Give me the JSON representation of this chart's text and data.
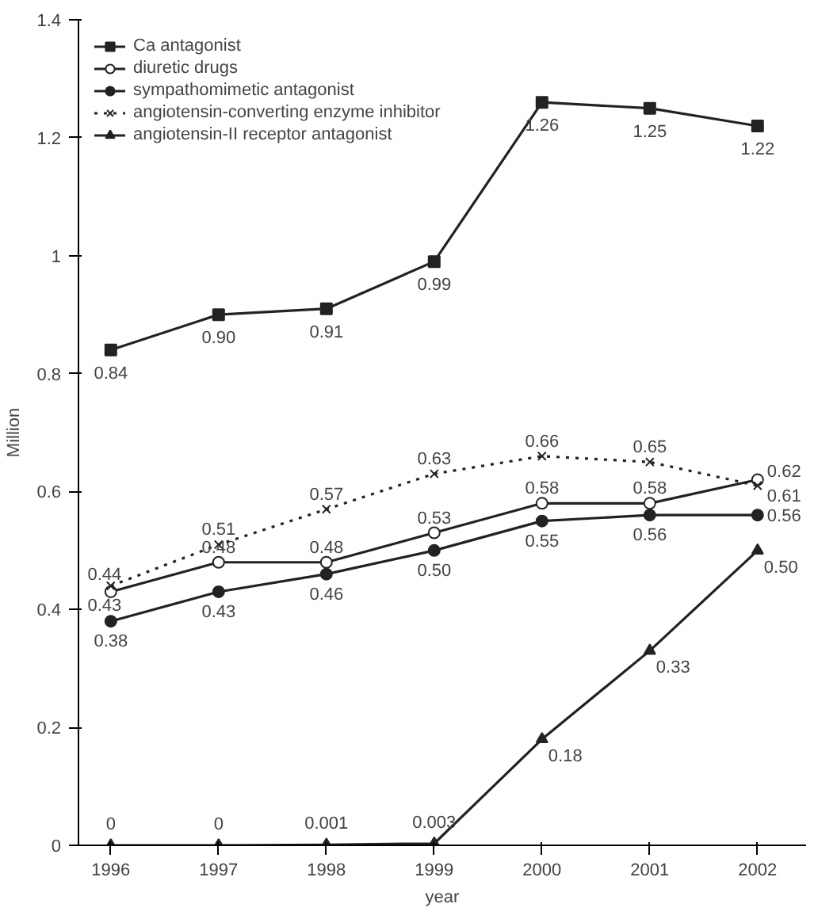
{
  "chart_data": {
    "type": "line",
    "xlabel": "year",
    "ylabel": "Million",
    "x": [
      1996,
      1997,
      1998,
      1999,
      2000,
      2001,
      2002
    ],
    "xlim": [
      1995.7,
      2002.45
    ],
    "xticks": [
      1996,
      1997,
      1998,
      1999,
      2000,
      2001,
      2002
    ],
    "ylim": [
      0,
      1.4
    ],
    "yticks": [
      0,
      0.2,
      0.4,
      0.6,
      0.8,
      1,
      1.2,
      1.4
    ],
    "grid": false,
    "legend": "top left",
    "series": [
      {
        "name": "Ca antagonist",
        "color": "#222222",
        "marker": "square",
        "line_style": "solid",
        "values": [
          0.84,
          0.9,
          0.91,
          0.99,
          1.26,
          1.25,
          1.22
        ],
        "value_labels": [
          "0.84",
          "0.90",
          "0.91",
          "0.99",
          "1.26",
          "1.25",
          "1.22"
        ]
      },
      {
        "name": "diuretic drugs",
        "color": "#222222",
        "marker": "circle",
        "line_style": "solid",
        "values": [
          0.43,
          0.48,
          0.48,
          0.53,
          0.58,
          0.58,
          0.62
        ],
        "value_labels": [
          "0.43",
          "0.48",
          "0.48",
          "0.53",
          "0.58",
          "0.58",
          "0.62"
        ]
      },
      {
        "name": "sympathomimetic antagonist",
        "color": "#222222",
        "marker": "circle",
        "line_style": "solid",
        "values": [
          0.38,
          0.43,
          0.46,
          0.5,
          0.55,
          0.56,
          0.56
        ],
        "value_labels": [
          "0.38",
          "0.43",
          "0.46",
          "0.50",
          "0.55",
          "0.56",
          "0.56"
        ]
      },
      {
        "name": "angiotensin-converting enzyme inhibitor",
        "color": "#222222",
        "marker": "cross",
        "line_style": "dotted",
        "values": [
          0.44,
          0.51,
          0.57,
          0.63,
          0.66,
          0.65,
          0.61
        ],
        "value_labels": [
          "0.44",
          "0.51",
          "0.57",
          "0.63",
          "0.66",
          "0.65",
          "0.61"
        ]
      },
      {
        "name": "angiotensin-II receptor antagonist",
        "color": "#222222",
        "marker": "triangle",
        "line_style": "solid",
        "values": [
          0,
          0,
          0.001,
          0.003,
          0.18,
          0.33,
          0.5
        ],
        "value_labels": [
          "0",
          "0",
          "0.001",
          "0.003",
          "0.18",
          "0.33",
          "0.50"
        ]
      }
    ]
  }
}
